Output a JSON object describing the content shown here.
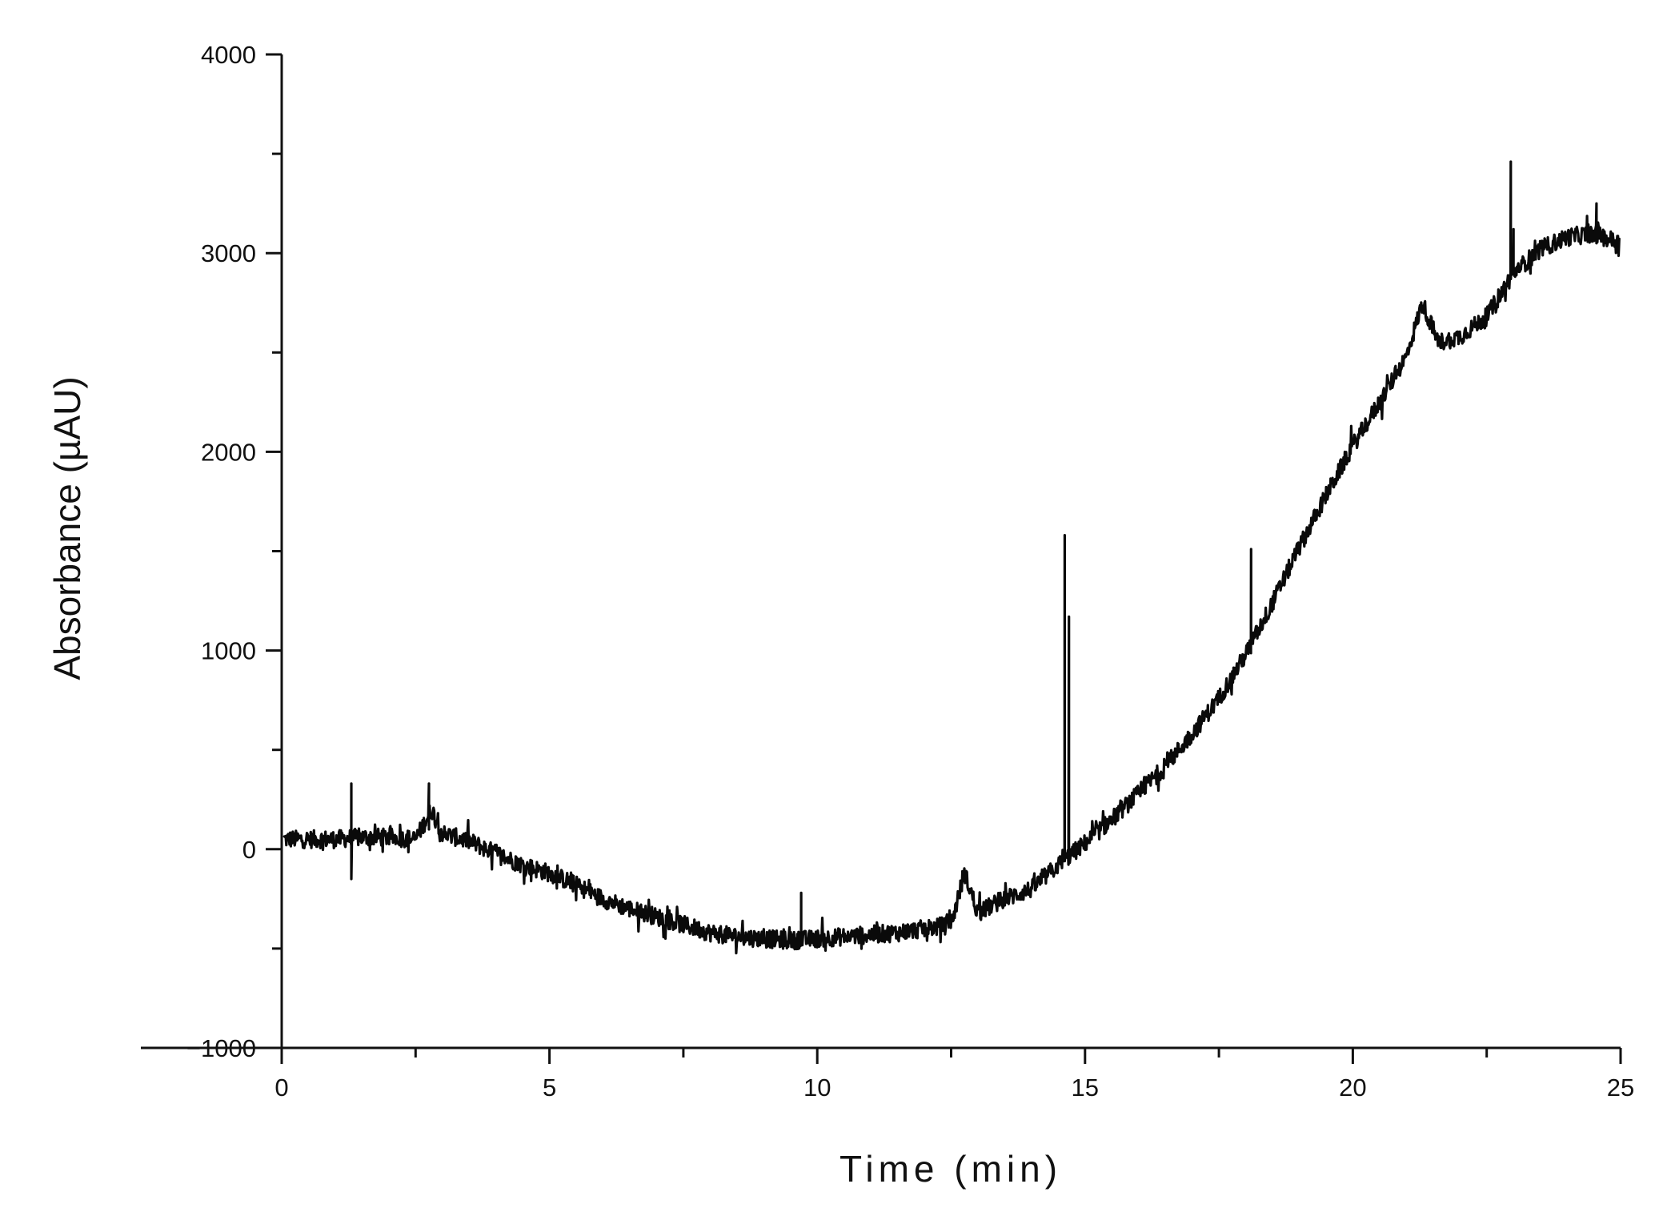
{
  "chart_data": {
    "type": "line",
    "title": "",
    "xlabel": "Time (min)",
    "ylabel": "Absorbance (µAU)",
    "xlim": [
      0,
      25
    ],
    "ylim": [
      -1000,
      4000
    ],
    "xticks": [
      0,
      5,
      10,
      15,
      20,
      25
    ],
    "xtick_labels": [
      "0",
      "5",
      "10",
      "15",
      "20",
      "25"
    ],
    "x_minor_ticks": [
      2.5,
      7.5,
      12.5,
      17.5,
      22.5
    ],
    "yticks": [
      -1000,
      0,
      1000,
      2000,
      3000,
      4000
    ],
    "ytick_labels": [
      "−1000",
      "0",
      "1000",
      "2000",
      "3000",
      "4000"
    ],
    "y_minor_ticks": [
      -500,
      500,
      1500,
      2500,
      3500
    ],
    "grid": false,
    "legend": "none",
    "line_color": "#0a0a0a",
    "series": [
      {
        "baseline": {
          "x": [
            0,
            0.5,
            1.0,
            1.5,
            2.0,
            2.5,
            2.8,
            3.0,
            3.5,
            4.0,
            4.5,
            5.0,
            5.5,
            6.0,
            6.5,
            7.0,
            7.5,
            8.0,
            8.5,
            9.0,
            9.5,
            10.0,
            10.5,
            11.0,
            11.5,
            12.0,
            12.5,
            12.75,
            13.0,
            13.5,
            14.0,
            14.5,
            15.0,
            15.5,
            16.0,
            16.5,
            17.0,
            17.5,
            18.0,
            18.5,
            19.0,
            19.5,
            20.0,
            20.5,
            21.0,
            21.3,
            21.6,
            22.0,
            22.5,
            23.0,
            23.5,
            24.0,
            24.5,
            25.0
          ],
          "y": [
            50,
            50,
            50,
            60,
            60,
            50,
            200,
            80,
            40,
            -20,
            -80,
            -120,
            -180,
            -250,
            -300,
            -340,
            -380,
            -420,
            -440,
            -450,
            -460,
            -450,
            -440,
            -430,
            -420,
            -400,
            -380,
            -120,
            -320,
            -250,
            -200,
            -80,
            30,
            150,
            280,
            420,
            580,
            760,
            980,
            1240,
            1520,
            1780,
            2030,
            2250,
            2480,
            2750,
            2550,
            2580,
            2680,
            2900,
            3020,
            3080,
            3100,
            3050
          ]
        },
        "noise_amplitude": 45,
        "spikes": [
          {
            "x": 1.3,
            "top": 330,
            "bottom": -150
          },
          {
            "x": 2.75,
            "top": 330,
            "bottom": 100
          },
          {
            "x": 9.7,
            "top": -220,
            "bottom": -460
          },
          {
            "x": 14.62,
            "top": 1580,
            "bottom": -60
          },
          {
            "x": 14.7,
            "top": 1170,
            "bottom": -40
          },
          {
            "x": 18.1,
            "top": 1510,
            "bottom": 1030
          },
          {
            "x": 22.95,
            "top": 3460,
            "bottom": 2870
          },
          {
            "x": 23.0,
            "top": 3120,
            "bottom": 2900
          },
          {
            "x": 24.55,
            "top": 3250,
            "bottom": 3050
          }
        ]
      }
    ]
  }
}
